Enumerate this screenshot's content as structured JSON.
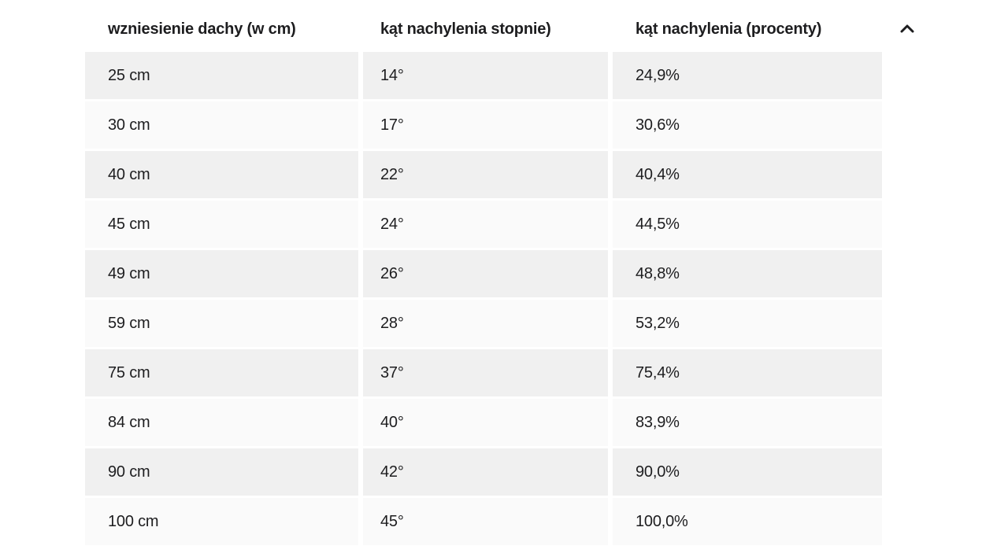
{
  "table": {
    "headers": [
      "wzniesienie dachy (w cm)",
      "kąt nachylenia stopnie)",
      "kąt nachylenia (procenty)"
    ],
    "sort_icon": "chevron-up",
    "rows": [
      [
        "25 cm",
        "14°",
        "24,9%"
      ],
      [
        "30 cm",
        "17°",
        "30,6%"
      ],
      [
        "40 cm",
        "22°",
        "40,4%"
      ],
      [
        "45 cm",
        "24°",
        "44,5%"
      ],
      [
        "49 cm",
        "26°",
        "48,8%"
      ],
      [
        "59 cm",
        "28°",
        "53,2%"
      ],
      [
        "75 cm",
        "37°",
        "75,4%"
      ],
      [
        "84 cm",
        "40°",
        "83,9%"
      ],
      [
        "90 cm",
        "42°",
        "90,0%"
      ],
      [
        "100 cm",
        "45°",
        "100,0%"
      ]
    ],
    "colors": {
      "stripe_row": "#f0f0f0",
      "plain_row": "#fafafa",
      "text": "#1d1d1f"
    }
  },
  "chart_data": {
    "type": "table",
    "columns": [
      "wzniesienie dachy (w cm)",
      "kąt nachylenia stopnie)",
      "kąt nachylenia (procenty)"
    ],
    "rows": [
      [
        "25 cm",
        "14°",
        "24,9%"
      ],
      [
        "30 cm",
        "17°",
        "30,6%"
      ],
      [
        "40 cm",
        "22°",
        "40,4%"
      ],
      [
        "45 cm",
        "24°",
        "44,5%"
      ],
      [
        "49 cm",
        "26°",
        "48,8%"
      ],
      [
        "59 cm",
        "28°",
        "53,2%"
      ],
      [
        "75 cm",
        "37°",
        "75,4%"
      ],
      [
        "84 cm",
        "40°",
        "83,9%"
      ],
      [
        "90 cm",
        "42°",
        "90,0%"
      ],
      [
        "100 cm",
        "45°",
        "100,0%"
      ]
    ],
    "layout_hints": {
      "striped_rows": true,
      "sort_indicator": "chevron-up at header right"
    }
  }
}
